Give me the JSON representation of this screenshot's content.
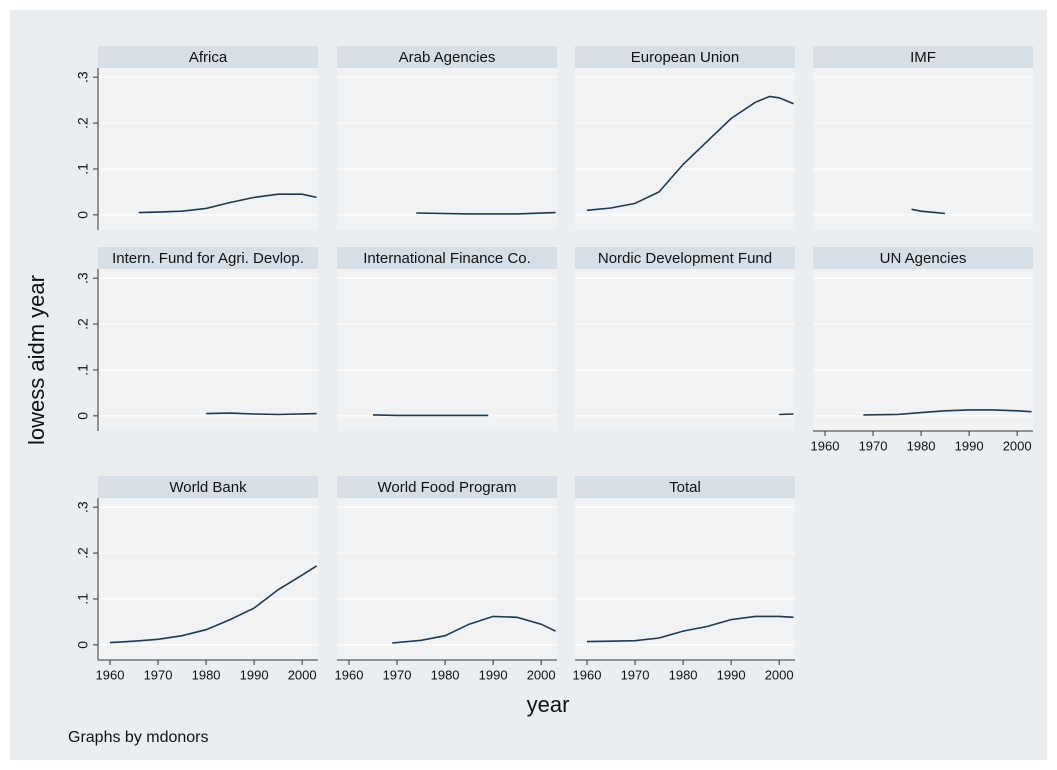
{
  "figure": {
    "y_label": "lowess aidm year",
    "x_label": "year",
    "note": "Graphs by mdonors"
  },
  "chart_data": [
    {
      "type": "line",
      "title": "Africa",
      "color": "#1c3a56",
      "x": [
        1966,
        1970,
        1975,
        1980,
        1985,
        1990,
        1995,
        2000,
        2003
      ],
      "values": [
        0.005,
        0.006,
        0.008,
        0.014,
        0.027,
        0.038,
        0.045,
        0.045,
        0.038
      ],
      "xlim": [
        1957.5,
        2003.3
      ],
      "ylim": [
        -0.033,
        0.32
      ],
      "xticks": [
        1960,
        1970,
        1980,
        1990,
        2000
      ],
      "yticks": [
        0,
        {
          "value": 0.1,
          "label": ".1"
        },
        {
          "value": 0.2,
          "label": ".2"
        },
        {
          "value": 0.3,
          "label": ".3"
        }
      ],
      "grid": true
    },
    {
      "type": "line",
      "title": "Arab Agencies",
      "color": "#1c3a56",
      "x": [
        1974,
        1985,
        1995,
        2003
      ],
      "values": [
        0.004,
        0.002,
        0.002,
        0.005
      ],
      "xlim": [
        1957.5,
        2003.3
      ],
      "ylim": [
        -0.033,
        0.32
      ],
      "xticks": [
        1960,
        1970,
        1980,
        1990,
        2000
      ],
      "yticks": [
        0,
        {
          "value": 0.1,
          "label": ".1"
        },
        {
          "value": 0.2,
          "label": ".2"
        },
        {
          "value": 0.3,
          "label": ".3"
        }
      ],
      "grid": true
    },
    {
      "type": "line",
      "title": "European Union",
      "color": "#1c3a56",
      "x": [
        1960,
        1965,
        1970,
        1975,
        1980,
        1985,
        1990,
        1995,
        1998,
        2000,
        2003
      ],
      "values": [
        0.01,
        0.015,
        0.025,
        0.05,
        0.11,
        0.16,
        0.21,
        0.245,
        0.258,
        0.255,
        0.242
      ],
      "xlim": [
        1957.5,
        2003.3
      ],
      "ylim": [
        -0.033,
        0.32
      ],
      "xticks": [
        1960,
        1970,
        1980,
        1990,
        2000
      ],
      "yticks": [
        0,
        {
          "value": 0.1,
          "label": ".1"
        },
        {
          "value": 0.2,
          "label": ".2"
        },
        {
          "value": 0.3,
          "label": ".3"
        }
      ],
      "grid": true
    },
    {
      "type": "line",
      "title": "IMF",
      "color": "#1c3a56",
      "x": [
        1978,
        1980,
        1983,
        1985
      ],
      "values": [
        0.012,
        0.008,
        0.005,
        0.003
      ],
      "xlim": [
        1957.5,
        2003.3
      ],
      "ylim": [
        -0.033,
        0.32
      ],
      "xticks": [
        1960,
        1970,
        1980,
        1990,
        2000
      ],
      "yticks": [
        0,
        {
          "value": 0.1,
          "label": ".1"
        },
        {
          "value": 0.2,
          "label": ".2"
        },
        {
          "value": 0.3,
          "label": ".3"
        }
      ],
      "grid": true
    },
    {
      "type": "line",
      "title": "Intern. Fund for Agri. Devlop.",
      "color": "#1c3a56",
      "x": [
        1980,
        1985,
        1990,
        1995,
        2003
      ],
      "values": [
        0.005,
        0.006,
        0.004,
        0.003,
        0.005
      ],
      "xlim": [
        1957.5,
        2003.3
      ],
      "ylim": [
        -0.033,
        0.32
      ],
      "xticks": [
        1960,
        1970,
        1980,
        1990,
        2000
      ],
      "yticks": [
        0,
        {
          "value": 0.1,
          "label": ".1"
        },
        {
          "value": 0.2,
          "label": ".2"
        },
        {
          "value": 0.3,
          "label": ".3"
        }
      ],
      "grid": true
    },
    {
      "type": "line",
      "title": "International Finance Co.",
      "color": "#1c3a56",
      "x": [
        1965,
        1970,
        1980,
        1989
      ],
      "values": [
        0.002,
        0.001,
        0.001,
        0.001
      ],
      "xlim": [
        1957.5,
        2003.3
      ],
      "ylim": [
        -0.033,
        0.32
      ],
      "xticks": [
        1960,
        1970,
        1980,
        1990,
        2000
      ],
      "yticks": [
        0,
        {
          "value": 0.1,
          "label": ".1"
        },
        {
          "value": 0.2,
          "label": ".2"
        },
        {
          "value": 0.3,
          "label": ".3"
        }
      ],
      "grid": true
    },
    {
      "type": "line",
      "title": "Nordic Development Fund",
      "color": "#1c3a56",
      "x": [
        2000,
        2003
      ],
      "values": [
        0.003,
        0.004
      ],
      "xlim": [
        1957.5,
        2003.3
      ],
      "ylim": [
        -0.033,
        0.32
      ],
      "xticks": [
        1960,
        1970,
        1980,
        1990,
        2000
      ],
      "yticks": [
        0,
        {
          "value": 0.1,
          "label": ".1"
        },
        {
          "value": 0.2,
          "label": ".2"
        },
        {
          "value": 0.3,
          "label": ".3"
        }
      ],
      "grid": true
    },
    {
      "type": "line",
      "title": "UN Agencies",
      "color": "#1c3a56",
      "x": [
        1968,
        1975,
        1980,
        1985,
        1990,
        1995,
        2000,
        2003
      ],
      "values": [
        0.002,
        0.003,
        0.007,
        0.011,
        0.013,
        0.013,
        0.011,
        0.009
      ],
      "xlim": [
        1957.5,
        2003.3
      ],
      "ylim": [
        -0.033,
        0.32
      ],
      "xticks": [
        1960,
        1970,
        1980,
        1990,
        2000
      ],
      "yticks": [
        0,
        {
          "value": 0.1,
          "label": ".1"
        },
        {
          "value": 0.2,
          "label": ".2"
        },
        {
          "value": 0.3,
          "label": ".3"
        }
      ],
      "grid": true
    },
    {
      "type": "line",
      "title": "World Bank",
      "color": "#1c3a56",
      "x": [
        1960,
        1965,
        1970,
        1975,
        1980,
        1985,
        1990,
        1995,
        2000,
        2003
      ],
      "values": [
        0.005,
        0.008,
        0.012,
        0.02,
        0.033,
        0.055,
        0.08,
        0.12,
        0.152,
        0.172
      ],
      "xlim": [
        1957.5,
        2003.3
      ],
      "ylim": [
        -0.033,
        0.32
      ],
      "xticks": [
        1960,
        1970,
        1980,
        1990,
        2000
      ],
      "yticks": [
        0,
        {
          "value": 0.1,
          "label": ".1"
        },
        {
          "value": 0.2,
          "label": ".2"
        },
        {
          "value": 0.3,
          "label": ".3"
        }
      ],
      "grid": true
    },
    {
      "type": "line",
      "title": "World Food Program",
      "color": "#1c3a56",
      "x": [
        1969,
        1975,
        1980,
        1985,
        1990,
        1995,
        2000,
        2003
      ],
      "values": [
        0.004,
        0.01,
        0.02,
        0.045,
        0.062,
        0.06,
        0.045,
        0.03
      ],
      "xlim": [
        1957.5,
        2003.3
      ],
      "ylim": [
        -0.033,
        0.32
      ],
      "xticks": [
        1960,
        1970,
        1980,
        1990,
        2000
      ],
      "yticks": [
        0,
        {
          "value": 0.1,
          "label": ".1"
        },
        {
          "value": 0.2,
          "label": ".2"
        },
        {
          "value": 0.3,
          "label": ".3"
        }
      ],
      "grid": true
    },
    {
      "type": "line",
      "title": "Total",
      "color": "#1c3a56",
      "x": [
        1960,
        1965,
        1970,
        1975,
        1980,
        1985,
        1990,
        1995,
        2000,
        2003
      ],
      "values": [
        0.007,
        0.008,
        0.009,
        0.015,
        0.03,
        0.04,
        0.055,
        0.062,
        0.062,
        0.06
      ],
      "xlim": [
        1957.5,
        2003.3
      ],
      "ylim": [
        -0.033,
        0.32
      ],
      "xticks": [
        1960,
        1970,
        1980,
        1990,
        2000
      ],
      "yticks": [
        0,
        {
          "value": 0.1,
          "label": ".1"
        },
        {
          "value": 0.2,
          "label": ".2"
        },
        {
          "value": 0.3,
          "label": ".3"
        }
      ],
      "grid": true
    }
  ]
}
